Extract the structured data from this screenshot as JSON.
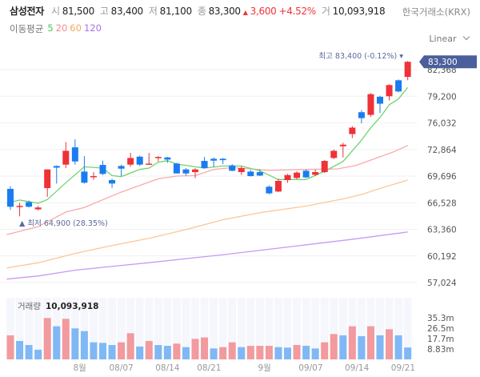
{
  "header": {
    "name": "삼성전자",
    "open_label": "시",
    "open": "81,500",
    "high_label": "고",
    "high": "83,400",
    "low_label": "저",
    "low": "81,100",
    "close_label": "종",
    "close": "83,300",
    "change_arrow": "▲",
    "change": "3,600",
    "change_pct": "+4.52%",
    "volume_label": "거",
    "volume": "10,093,918",
    "exchange": "한국거래소(KRX)"
  },
  "ma_legend": {
    "label": "이동평균",
    "items": [
      {
        "text": "5",
        "color": "#4cc94c"
      },
      {
        "text": "20",
        "color": "#f58a8a"
      },
      {
        "text": "60",
        "color": "#f7a95e"
      },
      {
        "text": "120",
        "color": "#a970f0"
      }
    ]
  },
  "scale_select": {
    "value": "Linear",
    "icon": "chevron-down-icon"
  },
  "colors": {
    "up": "#ef3138",
    "down": "#1a7cf0",
    "vol_up": "#f29a9e",
    "vol_down": "#80b8f5",
    "ma5": "#6fd46f",
    "ma20": "#f8a9a9",
    "ma60": "#fcc796",
    "ma120": "#c79af6",
    "badge": "#4a5f9c"
  },
  "chart_data": {
    "type": "candlestick",
    "y_ticks": [
      "82,368",
      "79,200",
      "76,032",
      "72,864",
      "69,696",
      "66,528",
      "63,360",
      "60,192",
      "57,024"
    ],
    "y_tick_values": [
      82368,
      79200,
      76032,
      72864,
      69696,
      66528,
      63360,
      60192,
      57024
    ],
    "current_price": "83,300",
    "high_annotation": "최고 83,400 (-0.12%) ▾",
    "low_annotation": "▲ 최저 64,900 (28.35%)",
    "high_value": 83400,
    "low_value": 64900,
    "candles": [
      [
        68175,
        66053,
        68492,
        65673
      ],
      [
        66050,
        66150,
        66528,
        64900
      ],
      [
        66600,
        66050,
        66780,
        65958
      ],
      [
        65736,
        65958,
        66150,
        65620
      ],
      [
        68270,
        70488,
        70488,
        67225
      ],
      [
        70900,
        70700,
        70960,
        68808
      ],
      [
        71060,
        72706,
        73751,
        70650
      ],
      [
        73117,
        71438,
        74068,
        71060
      ],
      [
        70235,
        68904,
        72072,
        68808
      ],
      [
        69570,
        69700,
        70170,
        69240
      ],
      [
        71027,
        69950,
        71534,
        69823
      ],
      [
        69220,
        68808,
        69380,
        68300
      ],
      [
        70900,
        70580,
        71060,
        69696
      ],
      [
        71060,
        71850,
        72452,
        70805
      ],
      [
        72009,
        71060,
        72130,
        70900
      ],
      [
        71090,
        71180,
        72452,
        71060
      ],
      [
        71914,
        71978,
        72072,
        71439
      ],
      [
        71914,
        71660,
        71978,
        71280
      ],
      [
        71185,
        70013,
        71280,
        70013
      ],
      [
        70488,
        70013,
        70646,
        69759
      ],
      [
        70170,
        70488,
        70646,
        69440
      ],
      [
        71502,
        70650,
        71978,
        70580
      ],
      [
        71755,
        71534,
        71914,
        70805
      ],
      [
        71755,
        71596,
        71850,
        71122
      ],
      [
        70963,
        70330,
        71122,
        70266
      ],
      [
        70170,
        70650,
        70870,
        69823
      ],
      [
        70235,
        69696,
        70425,
        69633
      ],
      [
        70170,
        69760,
        70488,
        69696
      ],
      [
        68428,
        67637,
        68586,
        67542
      ],
      [
        67859,
        69126,
        69380,
        67795
      ],
      [
        69220,
        69823,
        69950,
        68904
      ],
      [
        69475,
        70108,
        70266,
        69316
      ],
      [
        70330,
        69538,
        70488,
        69475
      ],
      [
        69855,
        70170,
        70488,
        69696
      ],
      [
        70170,
        71502,
        71600,
        70076
      ],
      [
        71850,
        72706,
        72864,
        71724
      ],
      [
        73244,
        73434,
        73660,
        71914
      ],
      [
        74700,
        75462,
        75652,
        74226
      ],
      [
        77300,
        76600,
        77553,
        75970
      ],
      [
        76983,
        79450,
        79580,
        76763
      ],
      [
        79137,
        78313,
        79264,
        77205
      ],
      [
        79200,
        80531,
        80626,
        78693
      ],
      [
        81100,
        79770,
        81195,
        79676
      ],
      [
        81500,
        83300,
        83400,
        81100
      ]
    ],
    "ma5": [
      [
        -0.4,
        66465
      ],
      [
        1,
        66845
      ],
      [
        3,
        66465
      ],
      [
        4,
        66900
      ],
      [
        6,
        68904
      ],
      [
        8,
        70805
      ],
      [
        10,
        70646
      ],
      [
        11,
        69759
      ],
      [
        12,
        69633
      ],
      [
        14,
        70488
      ],
      [
        15,
        70646
      ],
      [
        16,
        71343
      ],
      [
        17,
        71534
      ],
      [
        18,
        71122
      ],
      [
        21,
        70646
      ],
      [
        23,
        70900
      ],
      [
        25,
        70900
      ],
      [
        27,
        70330
      ],
      [
        29,
        69284
      ],
      [
        32,
        69284
      ],
      [
        34,
        70266
      ],
      [
        36,
        71439
      ],
      [
        38,
        73973
      ],
      [
        39,
        75462
      ],
      [
        40,
        76666
      ],
      [
        41,
        78186
      ],
      [
        42,
        78883
      ],
      [
        43,
        80246
      ]
    ],
    "ma20": [
      [
        -0.4,
        62726
      ],
      [
        3,
        63677
      ],
      [
        6,
        65419
      ],
      [
        8,
        65958
      ],
      [
        12,
        67795
      ],
      [
        16,
        69379
      ],
      [
        18,
        69696
      ],
      [
        20,
        69759
      ],
      [
        22,
        70488
      ],
      [
        24,
        70710
      ],
      [
        26,
        70551
      ],
      [
        28,
        70393
      ],
      [
        32,
        70488
      ],
      [
        35.4,
        70551
      ],
      [
        37.4,
        70963
      ],
      [
        39.4,
        71755
      ],
      [
        41.4,
        72547
      ],
      [
        43,
        73339
      ]
    ],
    "ma60": [
      [
        -0.4,
        58766
      ],
      [
        3.1,
        59400
      ],
      [
        7.1,
        60509
      ],
      [
        11.1,
        61459
      ],
      [
        15.1,
        62315
      ],
      [
        19.1,
        63360
      ],
      [
        23.1,
        64532
      ],
      [
        27.1,
        65355
      ],
      [
        32.1,
        66148
      ],
      [
        36.1,
        67003
      ],
      [
        38.1,
        67542
      ],
      [
        40.1,
        68270
      ],
      [
        43,
        69220
      ]
    ],
    "ma120": [
      [
        -0.4,
        57436
      ],
      [
        3.1,
        57816
      ],
      [
        7.1,
        58513
      ],
      [
        15.1,
        59400
      ],
      [
        23.1,
        60350
      ],
      [
        31.1,
        61395
      ],
      [
        37.1,
        62188
      ],
      [
        43,
        63043
      ]
    ],
    "volume_label": "거래량",
    "volume_value": "10,093,918",
    "volume_ticks": [
      "35.3m",
      "26.5m",
      "17.7m",
      "8.83m"
    ],
    "volume_tick_values": [
      35.3,
      26.5,
      17.7,
      8.83
    ],
    "volume_m": [
      20.4,
      15.6,
      12.2,
      8.2,
      35.1,
      28.1,
      34.4,
      26.3,
      24.0,
      14.5,
      14.0,
      12.2,
      14.5,
      22.2,
      10.9,
      15.6,
      12.2,
      11.5,
      13.4,
      10.4,
      17.4,
      18.6,
      9.3,
      10.4,
      14.5,
      10.4,
      11.5,
      11.5,
      11.5,
      10.4,
      10.0,
      12.2,
      11.5,
      9.3,
      14.5,
      21.5,
      20.4,
      28.1,
      19.7,
      28.1,
      20.4,
      25.6,
      20.4,
      10.1
    ],
    "volume_up": [
      1,
      0,
      0,
      0,
      1,
      0,
      1,
      0,
      0,
      0,
      0,
      0,
      1,
      1,
      0,
      1,
      0,
      0,
      1,
      0,
      1,
      1,
      0,
      1,
      1,
      0,
      1,
      1,
      1,
      0,
      0,
      1,
      0,
      0,
      1,
      1,
      0,
      1,
      0,
      1,
      0,
      1,
      0,
      0
    ],
    "x_ticks": [
      {
        "label": "8월",
        "index": 7.5
      },
      {
        "label": "08/07",
        "index": 12
      },
      {
        "label": "08/14",
        "index": 17
      },
      {
        "label": "08/21",
        "index": 21.5
      },
      {
        "label": "9월",
        "index": 27.5
      },
      {
        "label": "09/07",
        "index": 32.5
      },
      {
        "label": "09/14",
        "index": 37.5
      },
      {
        "label": "09/21",
        "index": 42.5
      }
    ]
  }
}
